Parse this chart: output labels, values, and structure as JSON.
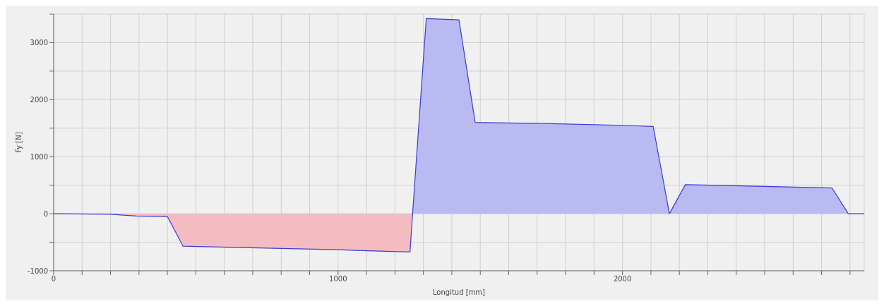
{
  "chart_data": {
    "type": "area",
    "xlabel": "Longitud [mm]",
    "ylabel": "Fy [N]",
    "xlim": [
      0,
      2850
    ],
    "ylim": [
      -1000,
      3500
    ],
    "xticks": [
      0,
      {
        "value": 100,
        "label": null
      },
      {
        "value": 200,
        "label": null
      },
      {
        "value": 300,
        "label": null
      },
      {
        "value": 400,
        "label": null
      },
      {
        "value": 500,
        "label": null
      },
      {
        "value": 600,
        "label": null
      },
      {
        "value": 700,
        "label": null
      },
      {
        "value": 800,
        "label": null
      },
      {
        "value": 900,
        "label": null
      },
      1000,
      {
        "value": 1100,
        "label": null
      },
      {
        "value": 1200,
        "label": null
      },
      {
        "value": 1300,
        "label": null
      },
      {
        "value": 1400,
        "label": null
      },
      {
        "value": 1500,
        "label": null
      },
      {
        "value": 1600,
        "label": null
      },
      {
        "value": 1700,
        "label": null
      },
      {
        "value": 1800,
        "label": null
      },
      {
        "value": 1900,
        "label": null
      },
      2000,
      {
        "value": 2100,
        "label": null
      },
      {
        "value": 2200,
        "label": null
      },
      {
        "value": 2300,
        "label": null
      },
      {
        "value": 2400,
        "label": null
      },
      {
        "value": 2500,
        "label": null
      },
      {
        "value": 2600,
        "label": null
      },
      {
        "value": 2700,
        "label": null
      },
      {
        "value": 2800,
        "label": null
      }
    ],
    "yticks": [
      -1000,
      {
        "value": -500,
        "label": null
      },
      0,
      {
        "value": 500,
        "label": null
      },
      1000,
      {
        "value": 1500,
        "label": null
      },
      2000,
      {
        "value": 2500,
        "label": null
      },
      3000,
      {
        "value": 3500,
        "label": null
      }
    ],
    "grid": true,
    "legend": false,
    "series": [
      {
        "color": "#f4bcc0",
        "x": [
          0,
          200,
          290,
          400,
          455,
          800,
          1000,
          1100,
          1253,
          1262
        ],
        "values": [
          0,
          -10,
          -40,
          -50,
          -570,
          -610,
          -630,
          -650,
          -670,
          0
        ]
      },
      {
        "color": "#babaf2",
        "x": [
          1262,
          1310,
          1425,
          1482,
          1750,
          2000,
          2108,
          2165,
          2221,
          2500,
          2737,
          2794,
          2850
        ],
        "values": [
          0,
          3420,
          3400,
          1600,
          1580,
          1550,
          1530,
          0,
          510,
          480,
          450,
          0,
          0
        ]
      }
    ]
  }
}
